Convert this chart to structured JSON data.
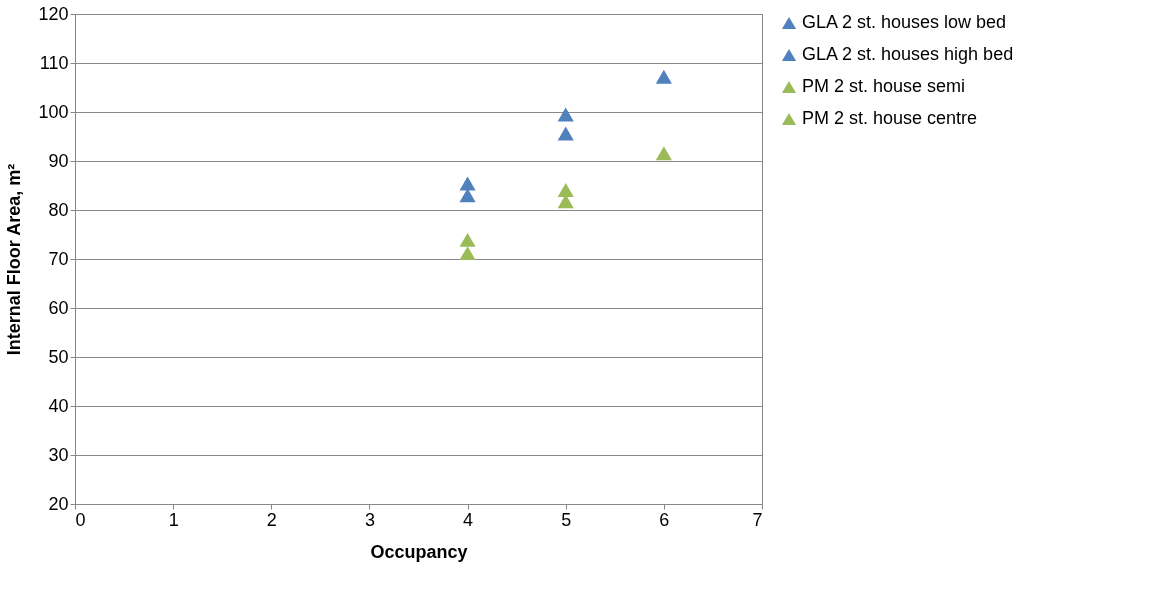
{
  "chart_data": {
    "type": "scatter",
    "xlabel": "Occupancy",
    "ylabel": "Internal Floor Area, m²",
    "x": [
      4,
      5,
      6
    ],
    "series": [
      {
        "name": "GLA 2 st. houses low bed",
        "color": "#4f81bd",
        "values": [
          83,
          95.6,
          107.2
        ]
      },
      {
        "name": "GLA 2 st. houses high bed",
        "color": "#4f81bd",
        "values": [
          85.4,
          99.5,
          null
        ]
      },
      {
        "name": "PM 2 st. house semi",
        "color": "#9bbb59",
        "values": [
          73.9,
          84.1,
          91.6
        ]
      },
      {
        "name": "PM 2 st. house centre",
        "color": "#9bbb59",
        "values": [
          71.2,
          81.8,
          null
        ]
      }
    ],
    "xlim": [
      0,
      7
    ],
    "xticks": [
      0,
      1,
      2,
      3,
      4,
      5,
      6,
      7
    ],
    "ylim": [
      20,
      120
    ],
    "yticks": [
      20,
      30,
      40,
      50,
      60,
      70,
      80,
      90,
      100,
      110,
      120
    ],
    "grid": "y",
    "legend": "right",
    "marker": "triangle"
  }
}
